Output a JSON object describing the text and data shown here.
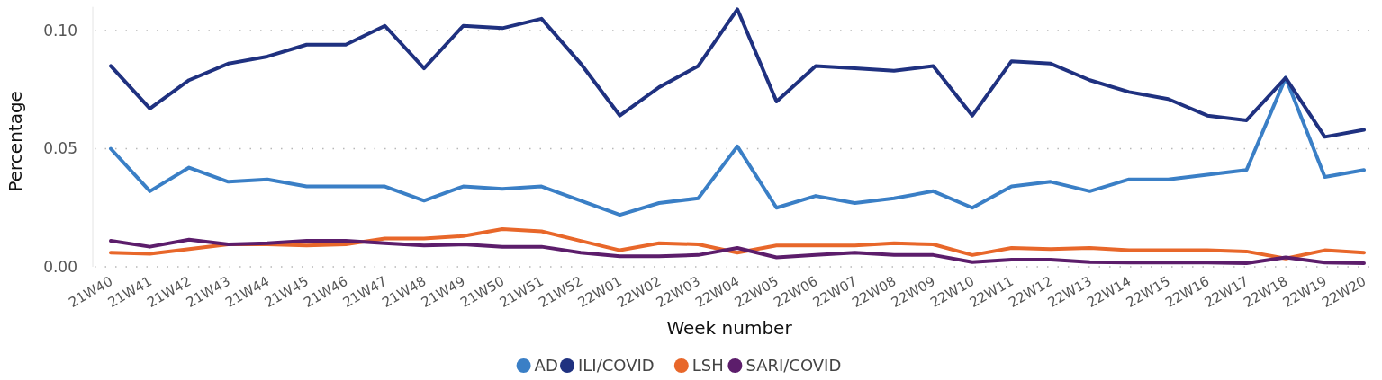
{
  "chart_data": {
    "type": "line",
    "xlabel": "Week number",
    "ylabel": "Percentage",
    "categories": [
      "21W40",
      "21W41",
      "21W42",
      "21W43",
      "21W44",
      "21W45",
      "21W46",
      "21W47",
      "21W48",
      "21W49",
      "21W50",
      "21W51",
      "21W52",
      "22W01",
      "22W02",
      "22W03",
      "22W04",
      "22W05",
      "22W06",
      "22W07",
      "22W08",
      "22W09",
      "22W10",
      "22W11",
      "22W12",
      "22W13",
      "22W14",
      "22W15",
      "22W16",
      "22W17",
      "22W18",
      "22W19",
      "22W20"
    ],
    "ylim": [
      0,
      0.11
    ],
    "yticks": [
      {
        "value": 0,
        "label": "0.00"
      },
      {
        "value": 0.05,
        "label": "0.05"
      },
      {
        "value": 0.1,
        "label": "0.10"
      }
    ],
    "grid": "y",
    "legend": "bottom",
    "marker": "none",
    "line_style": "solid",
    "series": [
      {
        "name": "AD",
        "color": "#3a7fc6",
        "values": [
          0.05,
          0.032,
          0.042,
          0.036,
          0.037,
          0.034,
          0.034,
          0.034,
          0.028,
          0.034,
          0.033,
          0.034,
          0.028,
          0.022,
          0.027,
          0.029,
          0.051,
          0.025,
          0.03,
          0.027,
          0.029,
          0.032,
          0.025,
          0.034,
          0.036,
          0.032,
          0.037,
          0.037,
          0.039,
          0.041,
          0.08,
          0.038,
          0.041
        ]
      },
      {
        "name": "ILI/COVID",
        "color": "#1f3180",
        "values": [
          0.085,
          0.067,
          0.079,
          0.086,
          0.089,
          0.094,
          0.094,
          0.102,
          0.084,
          0.102,
          0.101,
          0.105,
          0.086,
          0.064,
          0.076,
          0.085,
          0.109,
          0.07,
          0.085,
          0.084,
          0.083,
          0.085,
          0.064,
          0.087,
          0.086,
          0.079,
          0.074,
          0.071,
          0.064,
          0.062,
          0.08,
          0.055,
          0.058
        ]
      },
      {
        "name": "LSH",
        "color": "#e8672a",
        "values": [
          0.006,
          0.0055,
          0.0075,
          0.0095,
          0.0095,
          0.009,
          0.0095,
          0.012,
          0.012,
          0.013,
          0.016,
          0.015,
          0.011,
          0.007,
          0.01,
          0.0095,
          0.006,
          0.009,
          0.009,
          0.009,
          0.01,
          0.0095,
          0.005,
          0.008,
          0.0075,
          0.008,
          0.007,
          0.007,
          0.007,
          0.0065,
          0.0035,
          0.007,
          0.006
        ]
      },
      {
        "name": "SARI/COVID",
        "color": "#5c1d6b",
        "values": [
          0.011,
          0.0085,
          0.0115,
          0.0095,
          0.01,
          0.011,
          0.011,
          0.01,
          0.009,
          0.0095,
          0.0085,
          0.0085,
          0.006,
          0.0045,
          0.0045,
          0.005,
          0.008,
          0.004,
          0.005,
          0.006,
          0.005,
          0.005,
          0.002,
          0.003,
          0.003,
          0.002,
          0.0018,
          0.0018,
          0.0018,
          0.0015,
          0.004,
          0.0018,
          0.0015
        ]
      }
    ]
  }
}
